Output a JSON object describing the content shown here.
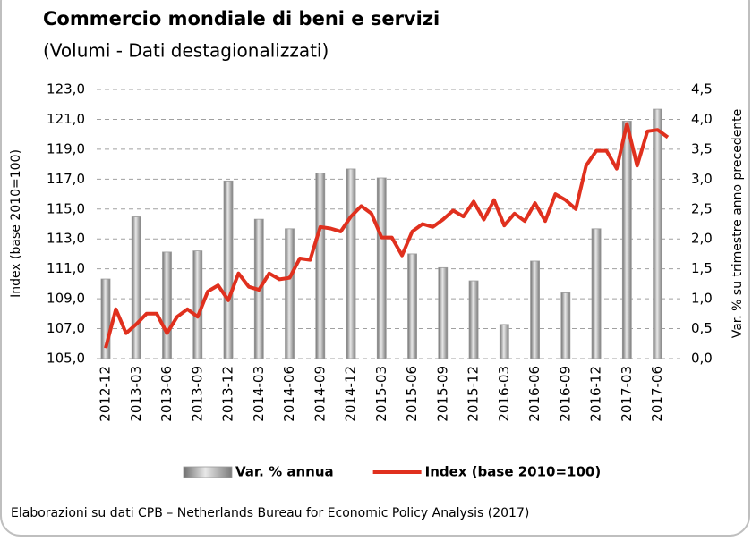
{
  "chart_data": {
    "type": "combo",
    "title": "Commercio mondiale di beni e servizi",
    "subtitle": "(Volumi - Dati destagionalizzati)",
    "y_label": "Index (base 2010=100)",
    "y2_label": "Var. % su trimestre anno precedente",
    "source": "Elaborazioni su dati CPB – Netherlands Bureau for Economic Policy Analysis (2017)",
    "categories": [
      "2012-12",
      null,
      null,
      "2013-03",
      null,
      null,
      "2013-06",
      null,
      null,
      "2013-09",
      null,
      null,
      "2013-12",
      null,
      null,
      "2014-03",
      null,
      null,
      "2014-06",
      null,
      null,
      "2014-09",
      null,
      null,
      "2014-12",
      null,
      null,
      "2015-03",
      null,
      null,
      "2015-06",
      null,
      null,
      "2015-09",
      null,
      null,
      "2015-12",
      null,
      null,
      "2016-03",
      null,
      null,
      "2016-06",
      null,
      null,
      "2016-09",
      null,
      null,
      "2016-12",
      null,
      null,
      "2017-03",
      null,
      null,
      "2017-06",
      null
    ],
    "series": [
      {
        "name": "Var. % annua",
        "type": "bar",
        "axis": "y2",
        "color": "#9a9a9a",
        "values": [
          1.33,
          null,
          null,
          2.37,
          null,
          null,
          1.78,
          null,
          null,
          1.8,
          null,
          null,
          2.97,
          null,
          null,
          2.33,
          null,
          null,
          2.17,
          null,
          null,
          3.1,
          null,
          null,
          3.17,
          null,
          null,
          3.02,
          null,
          null,
          1.75,
          null,
          null,
          1.52,
          null,
          null,
          1.3,
          null,
          null,
          0.57,
          null,
          null,
          1.63,
          null,
          null,
          1.1,
          null,
          null,
          2.17,
          null,
          null,
          3.97,
          null,
          null,
          4.17,
          null
        ]
      },
      {
        "name": "Index (base 2010=100)",
        "type": "line",
        "color": "#e0301e",
        "values": [
          105.7,
          108.3,
          106.7,
          107.3,
          108.0,
          108.0,
          106.7,
          107.8,
          108.3,
          107.8,
          109.5,
          109.9,
          108.9,
          110.7,
          109.8,
          109.6,
          110.7,
          110.3,
          110.4,
          111.7,
          111.6,
          113.8,
          113.7,
          113.5,
          114.5,
          115.2,
          114.7,
          113.1,
          113.1,
          111.9,
          113.5,
          114.0,
          113.8,
          114.3,
          114.9,
          114.5,
          115.5,
          114.3,
          115.6,
          113.9,
          114.7,
          114.2,
          115.4,
          114.2,
          116.0,
          115.6,
          115.0,
          117.9,
          118.9,
          118.9,
          117.7,
          120.7,
          117.9,
          120.2,
          120.3,
          119.8
        ]
      }
    ],
    "ylim": [
      105,
      123
    ],
    "yticks": [
      {
        "value": 105,
        "label": "105,0"
      },
      {
        "value": 107,
        "label": "107,0"
      },
      {
        "value": 109,
        "label": "109,0"
      },
      {
        "value": 111,
        "label": "111,0"
      },
      {
        "value": 113,
        "label": "113,0"
      },
      {
        "value": 115,
        "label": "115,0"
      },
      {
        "value": 117,
        "label": "117,0"
      },
      {
        "value": 119,
        "label": "119,0"
      },
      {
        "value": 121,
        "label": "121,0"
      },
      {
        "value": 123,
        "label": "123,0"
      }
    ],
    "y2lim": [
      0,
      4.5
    ],
    "y2ticks": [
      {
        "value": 0,
        "label": "0,0"
      },
      {
        "value": 0.5,
        "label": "0,5"
      },
      {
        "value": 1,
        "label": "1,0"
      },
      {
        "value": 1.5,
        "label": "1,5"
      },
      {
        "value": 2,
        "label": "2,0"
      },
      {
        "value": 2.5,
        "label": "2,5"
      },
      {
        "value": 3,
        "label": "3,0"
      },
      {
        "value": 3.5,
        "label": "3,5"
      },
      {
        "value": 4,
        "label": "4,0"
      },
      {
        "value": 4.5,
        "label": "4,5"
      }
    ],
    "grid": true,
    "legend": "bottom"
  }
}
